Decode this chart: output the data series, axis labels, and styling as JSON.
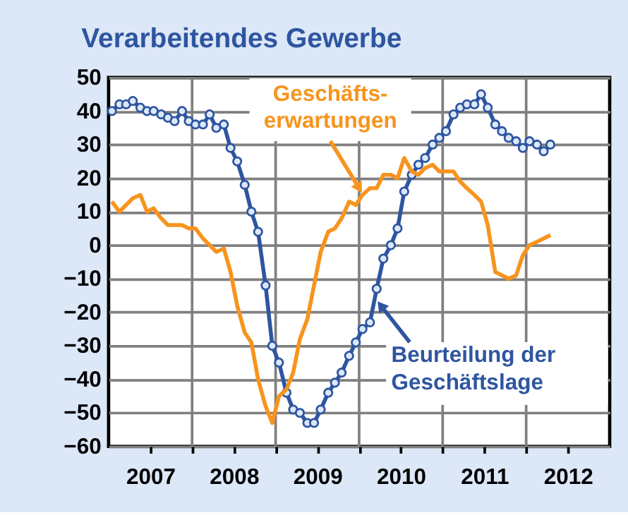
{
  "chart_data": {
    "type": "line",
    "title": "Verarbeitendes Gewerbe",
    "x": [
      2007.04,
      2007.13,
      2007.21,
      2007.29,
      2007.38,
      2007.46,
      2007.54,
      2007.63,
      2007.71,
      2007.79,
      2007.88,
      2007.96,
      2008.04,
      2008.13,
      2008.21,
      2008.29,
      2008.38,
      2008.46,
      2008.54,
      2008.63,
      2008.71,
      2008.79,
      2008.88,
      2008.96,
      2009.04,
      2009.13,
      2009.21,
      2009.29,
      2009.38,
      2009.46,
      2009.54,
      2009.63,
      2009.71,
      2009.79,
      2009.88,
      2009.96,
      2010.04,
      2010.13,
      2010.21,
      2010.29,
      2010.38,
      2010.46,
      2010.54,
      2010.63,
      2010.71,
      2010.79,
      2010.88,
      2010.96,
      2011.04,
      2011.13,
      2011.21,
      2011.29,
      2011.38,
      2011.46,
      2011.54,
      2011.63,
      2011.71,
      2011.79,
      2011.88,
      2011.96,
      2012.04,
      2012.13,
      2012.21,
      2012.29
    ],
    "series": [
      {
        "color": "#2e55a0",
        "marker": "circle",
        "values": [
          40,
          42,
          42,
          43,
          41,
          40,
          40,
          39,
          38,
          37,
          40,
          37,
          36,
          36,
          39,
          35,
          36,
          29,
          25,
          18,
          10,
          4,
          -12,
          -30,
          -35,
          -44,
          -49,
          -50,
          -53,
          -53,
          -49,
          -44,
          -41,
          -38,
          -33,
          -29,
          -25,
          -23,
          -13,
          -4,
          0,
          5,
          16,
          21,
          24,
          26,
          30,
          32,
          34,
          39,
          41,
          42,
          42,
          45,
          41,
          36,
          34,
          32,
          31,
          29,
          31,
          30,
          28,
          30
        ]
      },
      {
        "color": "#f7941d",
        "marker": "none",
        "values": [
          13,
          10,
          12,
          14,
          15,
          10,
          11,
          8,
          6,
          6,
          6,
          5,
          5,
          2,
          0,
          -2,
          -1,
          -8,
          -18,
          -26,
          -29,
          -40,
          -48,
          -53,
          -45,
          -43,
          -38,
          -28,
          -22,
          -12,
          -2,
          4,
          5,
          8,
          13,
          12,
          15,
          17,
          17,
          21,
          21,
          20,
          26,
          22,
          21,
          23,
          24,
          22,
          22,
          22,
          19,
          17,
          15,
          13,
          6,
          -8,
          -9,
          -10,
          -9,
          -3,
          0,
          1,
          2,
          3
        ]
      }
    ],
    "xlim": [
      2007,
      2013
    ],
    "xticks": [
      {
        "value": 2007.5,
        "label": "2007"
      },
      {
        "value": 2008,
        "label": null
      },
      {
        "value": 2008.5,
        "label": "2008"
      },
      {
        "value": 2009,
        "label": null
      },
      {
        "value": 2009.5,
        "label": "2009"
      },
      {
        "value": 2010,
        "label": null
      },
      {
        "value": 2010.5,
        "label": "2010"
      },
      {
        "value": 2011,
        "label": null
      },
      {
        "value": 2011.5,
        "label": "2011"
      },
      {
        "value": 2012,
        "label": null
      },
      {
        "value": 2012.5,
        "label": "2012"
      }
    ],
    "ylim": [
      -60,
      50
    ],
    "yticks": [
      -60,
      -50,
      -40,
      -30,
      -20,
      -10,
      0,
      10,
      20,
      30,
      40,
      50
    ],
    "grid": true,
    "line_style": "solid",
    "annotations": [
      {
        "text": "Geschäfts-\nerwartungen",
        "x": 2010.0,
        "y": 17
      },
      {
        "text": "Beurteilung der\nGeschäftslage",
        "x": 2010.26,
        "y": -18
      }
    ]
  }
}
